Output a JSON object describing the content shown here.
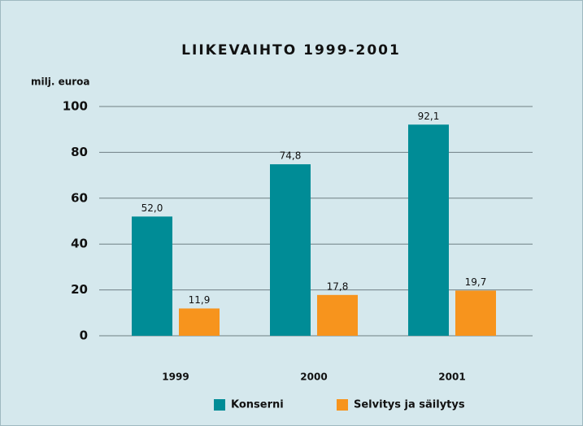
{
  "chart_data": {
    "type": "bar",
    "title": "LIIKEVAIHTO 1999-2001",
    "y_label": "milj. euroa",
    "categories": [
      "1999",
      "2000",
      "2001"
    ],
    "series": [
      {
        "name": "Konserni",
        "color": "#008c96",
        "values": [
          52.0,
          74.8,
          92.1
        ],
        "value_labels": [
          "52,0",
          "74,8",
          "92,1"
        ]
      },
      {
        "name": "Selvitys ja säilytys",
        "color": "#f7941d",
        "values": [
          11.9,
          17.8,
          19.7
        ],
        "value_labels": [
          "11,9",
          "17,8",
          "19,7"
        ]
      }
    ],
    "ylim": [
      0,
      100
    ],
    "yticks": [
      0,
      20,
      40,
      60,
      80,
      100
    ],
    "grid": true,
    "legend": "bottom"
  }
}
